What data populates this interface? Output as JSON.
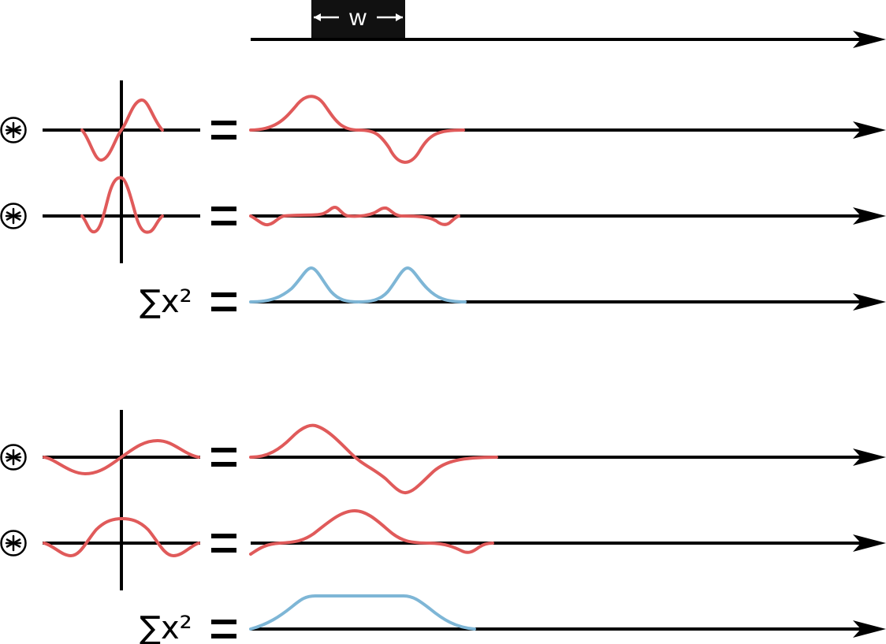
{
  "colors": {
    "filter": "#e05a5a",
    "sum": "#7eb6d6",
    "axis": "#000000",
    "label_box": "#111111"
  },
  "top_scale": {
    "label": "w"
  },
  "groups": [
    {
      "filters": [
        {
          "operator_icon": "convolution-icon",
          "kernel": "odd",
          "equals": "=",
          "output": "odd-response"
        },
        {
          "operator_icon": "convolution-icon",
          "kernel": "even",
          "equals": "=",
          "output": "even-response"
        }
      ],
      "sum": {
        "label": "∑x²",
        "equals": "=",
        "output": "two-peaks"
      }
    },
    {
      "filters": [
        {
          "operator_icon": "convolution-icon",
          "kernel": "odd-wide",
          "equals": "=",
          "output": "odd-wide-response"
        },
        {
          "operator_icon": "convolution-icon",
          "kernel": "even-wide",
          "equals": "=",
          "output": "even-wide-response"
        }
      ],
      "sum": {
        "label": "∑x²",
        "equals": "=",
        "output": "plateau"
      }
    }
  ]
}
